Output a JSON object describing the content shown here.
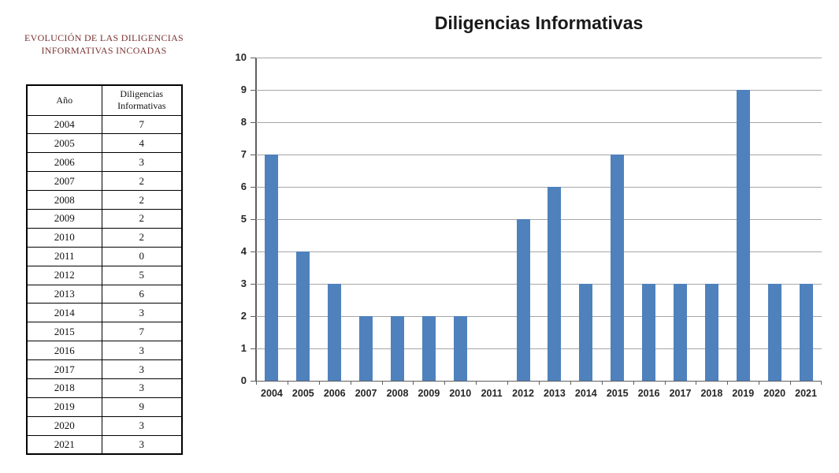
{
  "left_panel": {
    "title_line1": "EVOLUCIÓN DE LAS DILIGENCIAS",
    "title_line2": "INFORMATIVAS INCOADAS",
    "table": {
      "headers": [
        "Año",
        "Diligencias Informativas"
      ],
      "rows": [
        [
          "2004",
          "7"
        ],
        [
          "2005",
          "4"
        ],
        [
          "2006",
          "3"
        ],
        [
          "2007",
          "2"
        ],
        [
          "2008",
          "2"
        ],
        [
          "2009",
          "2"
        ],
        [
          "2010",
          "2"
        ],
        [
          "2011",
          "0"
        ],
        [
          "2012",
          "5"
        ],
        [
          "2013",
          "6"
        ],
        [
          "2014",
          "3"
        ],
        [
          "2015",
          "7"
        ],
        [
          "2016",
          "3"
        ],
        [
          "2017",
          "3"
        ],
        [
          "2018",
          "3"
        ],
        [
          "2019",
          "9"
        ],
        [
          "2020",
          "3"
        ],
        [
          "2021",
          "3"
        ]
      ]
    }
  },
  "chart_data": {
    "type": "bar",
    "title": "Diligencias Informativas",
    "categories": [
      "2004",
      "2005",
      "2006",
      "2007",
      "2008",
      "2009",
      "2010",
      "2011",
      "2012",
      "2013",
      "2014",
      "2015",
      "2016",
      "2017",
      "2018",
      "2019",
      "2020",
      "2021"
    ],
    "values": [
      7,
      4,
      3,
      2,
      2,
      2,
      2,
      0,
      5,
      6,
      3,
      7,
      3,
      3,
      3,
      9,
      3,
      3
    ],
    "xlabel": "",
    "ylabel": "",
    "ylim": [
      0,
      10
    ],
    "ytick_interval": 1,
    "grid": true,
    "legend": false,
    "bar_color": "#4f81bd",
    "gridline_color": "#a6a6a6",
    "axis_color": "#5f5f5f",
    "tick_label_color": "#262626",
    "title_color": "#1a1a1a"
  },
  "colors": {
    "background": "#ffffff",
    "left_title": "#7a3333",
    "table_border": "#000000",
    "table_text": "#111111"
  }
}
